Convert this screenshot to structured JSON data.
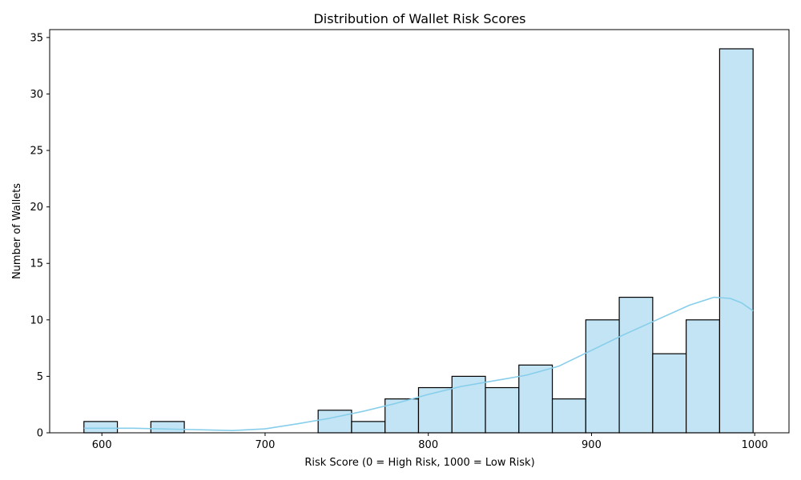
{
  "chart_data": {
    "type": "bar",
    "title": "Distribution of Wallet Risk Scores",
    "xlabel": "Risk Score (0 = High Risk, 1000 = Low Risk)",
    "ylabel": "Number of Wallets",
    "xlim": [
      568,
      1021
    ],
    "ylim": [
      0,
      35.7
    ],
    "xticks": [
      600,
      700,
      800,
      900,
      1000
    ],
    "yticks": [
      0,
      5,
      10,
      15,
      20,
      25,
      30,
      35
    ],
    "bins": [
      {
        "x0": 589,
        "x1": 609.5,
        "count": 1
      },
      {
        "x0": 609.5,
        "x1": 630,
        "count": 0
      },
      {
        "x0": 630,
        "x1": 650.5,
        "count": 1
      },
      {
        "x0": 650.5,
        "x1": 671,
        "count": 0
      },
      {
        "x0": 671,
        "x1": 691.5,
        "count": 0
      },
      {
        "x0": 691.5,
        "x1": 712,
        "count": 0
      },
      {
        "x0": 712,
        "x1": 732.5,
        "count": 0
      },
      {
        "x0": 732.5,
        "x1": 753,
        "count": 2
      },
      {
        "x0": 753,
        "x1": 773.5,
        "count": 1
      },
      {
        "x0": 773.5,
        "x1": 794,
        "count": 3
      },
      {
        "x0": 794,
        "x1": 814.5,
        "count": 4
      },
      {
        "x0": 814.5,
        "x1": 835,
        "count": 5
      },
      {
        "x0": 835,
        "x1": 855.5,
        "count": 4
      },
      {
        "x0": 855.5,
        "x1": 876,
        "count": 6
      },
      {
        "x0": 876,
        "x1": 896.5,
        "count": 3
      },
      {
        "x0": 896.5,
        "x1": 917,
        "count": 10
      },
      {
        "x0": 917,
        "x1": 937.5,
        "count": 12
      },
      {
        "x0": 937.5,
        "x1": 958,
        "count": 7
      },
      {
        "x0": 958,
        "x1": 978.5,
        "count": 10
      },
      {
        "x0": 978.5,
        "x1": 999,
        "count": 34
      }
    ],
    "kde": {
      "x": [
        589,
        620,
        650,
        680,
        700,
        720,
        740,
        760,
        780,
        800,
        820,
        840,
        860,
        880,
        900,
        920,
        940,
        960,
        975,
        985,
        992,
        999
      ],
      "y": [
        0.4,
        0.4,
        0.3,
        0.2,
        0.35,
        0.8,
        1.3,
        1.9,
        2.6,
        3.4,
        4.1,
        4.6,
        5.1,
        5.9,
        7.3,
        8.7,
        10.0,
        11.3,
        12.0,
        11.9,
        11.5,
        10.8
      ]
    },
    "colors": {
      "bar_fill": "#c2e4f4",
      "bar_edge": "#000000",
      "kde_line": "#87ceeb"
    }
  }
}
